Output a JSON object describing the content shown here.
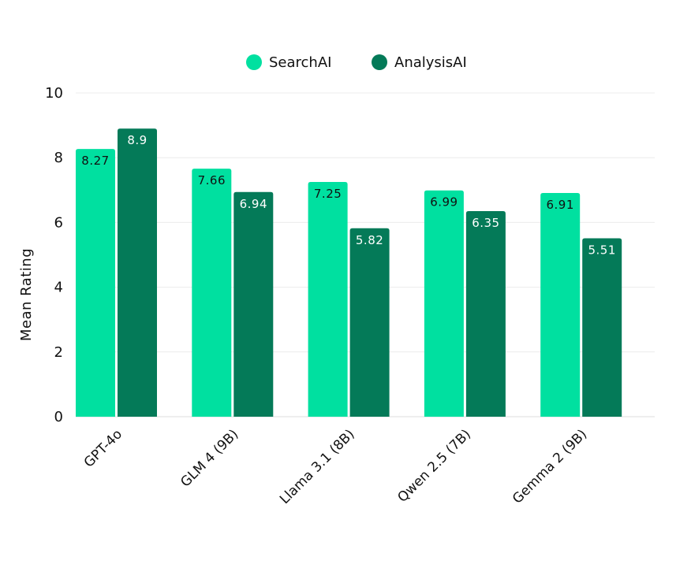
{
  "chart_data": {
    "type": "bar",
    "title": "",
    "xlabel": "",
    "ylabel": "Mean Rating",
    "ylim": [
      0,
      10
    ],
    "yticks": [
      "0",
      "2",
      "4",
      "6",
      "8",
      "10"
    ],
    "categories": [
      "GPT-4o",
      "GLM 4 (9B)",
      "Llama 3.1 (8B)",
      "Qwen 2.5 (7B)",
      "Gemma 2 (9B)"
    ],
    "series": [
      {
        "name": "SearchAI",
        "color": "#00e0a0",
        "label_color": "#111111",
        "values": [
          8.27,
          7.66,
          7.25,
          6.99,
          6.91
        ],
        "labels": [
          "8.27",
          "7.66",
          "7.25",
          "6.99",
          "6.91"
        ]
      },
      {
        "name": "AnalysisAI",
        "color": "#047a58",
        "label_color": "#ffffff",
        "values": [
          8.9,
          6.94,
          5.82,
          6.35,
          5.51
        ],
        "labels": [
          "8.9",
          "6.94",
          "5.82",
          "6.35",
          "5.51"
        ]
      }
    ],
    "legend_position": "top-center",
    "grid": true
  }
}
